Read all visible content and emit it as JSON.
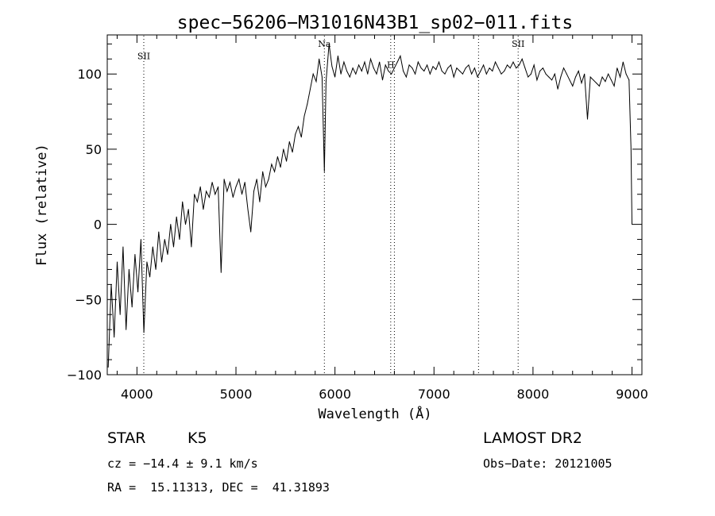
{
  "chart_data": {
    "type": "line",
    "title": "spec−56206−M31016N43B1_sp02−011.fits",
    "xlabel": "Wavelength (Å)",
    "ylabel": "Flux (relative)",
    "xlim": [
      3700,
      9100
    ],
    "ylim": [
      -100,
      126
    ],
    "x_ticks": [
      {
        "value": 4000,
        "label": "4000"
      },
      {
        "value": 5000,
        "label": "5000"
      },
      {
        "value": 6000,
        "label": "6000"
      },
      {
        "value": 7000,
        "label": "7000"
      },
      {
        "value": 8000,
        "label": "8000"
      },
      {
        "value": 9000,
        "label": "9000"
      }
    ],
    "y_ticks": [
      {
        "value": -100,
        "label": "−100"
      },
      {
        "value": -50,
        "label": "−50"
      },
      {
        "value": 0,
        "label": "0"
      },
      {
        "value": 50,
        "label": "50"
      },
      {
        "value": 100,
        "label": "100"
      }
    ],
    "line_markers": [
      {
        "name": "SII",
        "wavelength": 4069,
        "label_y": 110
      },
      {
        "name": "Na",
        "wavelength": 5893,
        "label_y": 118
      },
      {
        "name": "H",
        "wavelength": 6563,
        "label_y": 104
      },
      {
        "name": "",
        "wavelength": 6600,
        "label_y": null
      },
      {
        "name": "",
        "wavelength": 7450,
        "label_y": null
      },
      {
        "name": "SII",
        "wavelength": 7850,
        "label_y": 118
      }
    ],
    "series": [
      {
        "x": [
          3710,
          3740,
          3770,
          3800,
          3830,
          3860,
          3890,
          3920,
          3950,
          3980,
          4010,
          4040,
          4070,
          4100,
          4130,
          4160,
          4190,
          4220,
          4250,
          4280,
          4310,
          4340,
          4370,
          4400,
          4430,
          4460,
          4490,
          4520,
          4550,
          4580,
          4610,
          4640,
          4670,
          4700,
          4730,
          4760,
          4790,
          4820,
          4850,
          4880,
          4910,
          4940,
          4970,
          5000,
          5030,
          5060,
          5090,
          5120,
          5150,
          5180,
          5210,
          5240,
          5270,
          5300,
          5330,
          5360,
          5390,
          5420,
          5450,
          5480,
          5510,
          5540,
          5570,
          5600,
          5630,
          5660,
          5690,
          5720,
          5750,
          5780,
          5810,
          5840,
          5870,
          5893,
          5910,
          5940,
          5970,
          6000,
          6030,
          6060,
          6090,
          6120,
          6150,
          6180,
          6210,
          6240,
          6270,
          6300,
          6330,
          6360,
          6390,
          6420,
          6450,
          6480,
          6510,
          6540,
          6570,
          6600,
          6630,
          6660,
          6690,
          6720,
          6750,
          6780,
          6810,
          6840,
          6870,
          6900,
          6930,
          6960,
          6990,
          7020,
          7050,
          7080,
          7110,
          7140,
          7170,
          7200,
          7230,
          7260,
          7290,
          7320,
          7350,
          7380,
          7410,
          7440,
          7470,
          7500,
          7530,
          7560,
          7590,
          7620,
          7650,
          7680,
          7710,
          7740,
          7770,
          7800,
          7830,
          7860,
          7890,
          7920,
          7950,
          7980,
          8010,
          8040,
          8070,
          8100,
          8130,
          8160,
          8190,
          8220,
          8250,
          8280,
          8310,
          8340,
          8370,
          8400,
          8430,
          8460,
          8490,
          8520,
          8550,
          8580,
          8610,
          8640,
          8670,
          8700,
          8730,
          8760,
          8790,
          8820,
          8850,
          8880,
          8910,
          8940,
          8970,
          8990,
          9000
        ],
        "y": [
          -95,
          -40,
          -75,
          -25,
          -60,
          -15,
          -70,
          -30,
          -55,
          -20,
          -45,
          -10,
          -72,
          -25,
          -35,
          -15,
          -30,
          -5,
          -25,
          -10,
          -20,
          0,
          -15,
          5,
          -10,
          15,
          0,
          10,
          -15,
          20,
          15,
          25,
          10,
          22,
          18,
          28,
          20,
          25,
          -32,
          30,
          22,
          28,
          18,
          25,
          30,
          20,
          28,
          10,
          -5,
          22,
          30,
          15,
          35,
          25,
          30,
          40,
          35,
          45,
          38,
          50,
          42,
          55,
          48,
          60,
          65,
          58,
          72,
          80,
          90,
          100,
          95,
          110,
          98,
          35,
          95,
          120,
          105,
          98,
          112,
          100,
          108,
          102,
          98,
          104,
          100,
          106,
          102,
          108,
          100,
          110,
          104,
          100,
          108,
          96,
          106,
          102,
          100,
          104,
          108,
          112,
          102,
          98,
          106,
          104,
          100,
          108,
          104,
          102,
          106,
          100,
          105,
          103,
          108,
          102,
          100,
          104,
          106,
          98,
          104,
          102,
          100,
          104,
          106,
          100,
          104,
          98,
          102,
          106,
          100,
          104,
          102,
          108,
          104,
          100,
          102,
          106,
          104,
          108,
          104,
          106,
          110,
          104,
          98,
          100,
          106,
          96,
          102,
          104,
          100,
          98,
          96,
          100,
          90,
          98,
          104,
          100,
          96,
          92,
          98,
          102,
          94,
          100,
          70,
          98,
          96,
          94,
          92,
          98,
          95,
          100,
          96,
          92,
          104,
          98,
          108,
          100,
          96,
          50,
          0
        ]
      }
    ]
  },
  "info": {
    "object_type": "STAR",
    "subclass": "K5",
    "survey": "LAMOST DR2",
    "redshift_line": "cz = −14.4 ± 9.1 km/s",
    "obs_date_line": "Obs−Date: 20121005",
    "coords_line": "RA =  15.11313, DEC =  41.31893"
  }
}
